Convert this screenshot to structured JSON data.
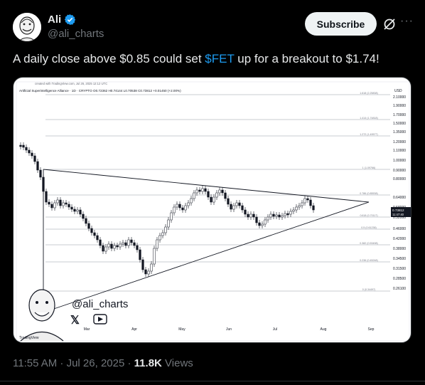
{
  "author": {
    "name": "Ali",
    "handle": "@ali_charts",
    "verified_color": "#1d9bf0"
  },
  "actions": {
    "subscribe_label": "Subscribe",
    "grok_icon": "grok-icon",
    "more_icon": "more-icon"
  },
  "tweet": {
    "text_before": "A daily close above $0.85 could set ",
    "cashtag": "$FET",
    "text_after": " up for a breakout to $1.74!"
  },
  "chart_image": {
    "header": "created with TradingView.com, Jul 26, 2025 12:12 UTC",
    "symbol_line": "Artificial Superintelligence Alliance · 1D · CRYPTO  O0.72362  H0.74144  L0.70538  C0.73812  +0.01450 (+2.00%)",
    "currency": "USD",
    "watermark": "@ali_charts",
    "brand": "TradingView",
    "price_tag_top": "0.73812",
    "price_tag_bottom": "11:47:40"
  },
  "chart_data": {
    "type": "line",
    "title": "",
    "xlabel": "",
    "ylabel": "USD",
    "y_ticks": [
      2.1,
      1.9,
      1.7,
      1.5,
      1.35,
      1.2,
      1.1,
      1.0,
      0.9,
      0.8,
      0.64,
      0.58,
      0.52,
      0.46,
      0.42,
      0.38,
      0.345,
      0.315,
      0.285,
      0.261
    ],
    "y_tick_labels": [
      "2.10000",
      "1.90000",
      "1.70000",
      "1.50000",
      "1.35000",
      "1.20000",
      "1.10000",
      "1.00000",
      "0.90000",
      "0.80000",
      "0.64000",
      "0.58000",
      "0.52000",
      "0.46000",
      "0.42000",
      "0.38000",
      "0.34500",
      "0.31500",
      "0.28500",
      "0.26100"
    ],
    "x_tick_labels": [
      "Mar",
      "Apr",
      "May",
      "Jun",
      "Jul",
      "Aug",
      "Sep"
    ],
    "fib_levels": [
      {
        "label": "1.618 (2.25838)"
      },
      {
        "label": "1.414 (1.74818)"
      },
      {
        "label": "1.272 (1.49577)"
      },
      {
        "label": "1 (1.09766)"
      },
      {
        "label": "0.786 (0.85538)"
      },
      {
        "label": "0.618 (0.70117)"
      },
      {
        "label": "0.5 (0.61238)"
      },
      {
        "label": "0.382 (0.53498)"
      },
      {
        "label": "0.236 (0.45248)"
      },
      {
        "label": "0 (0.34497)"
      }
    ],
    "last_price": 0.73812
  }
}
